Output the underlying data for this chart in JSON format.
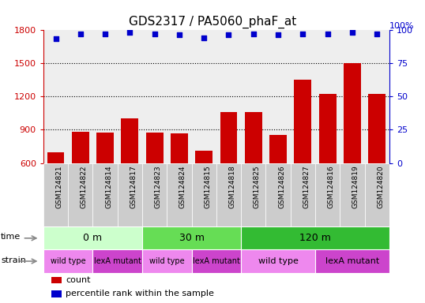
{
  "title": "GDS2317 / PA5060_phaF_at",
  "samples": [
    "GSM124821",
    "GSM124822",
    "GSM124814",
    "GSM124817",
    "GSM124823",
    "GSM124824",
    "GSM124815",
    "GSM124818",
    "GSM124825",
    "GSM124826",
    "GSM124827",
    "GSM124816",
    "GSM124819",
    "GSM124820"
  ],
  "counts": [
    700,
    880,
    875,
    1000,
    875,
    870,
    710,
    1060,
    1060,
    850,
    1350,
    1225,
    1500,
    1225
  ],
  "percentiles": [
    93,
    97,
    97,
    98,
    97,
    96,
    94,
    96,
    97,
    96,
    97,
    97,
    98,
    97
  ],
  "bar_color": "#cc0000",
  "dot_color": "#0000cc",
  "ylim_left": [
    600,
    1800
  ],
  "ylim_right": [
    0,
    100
  ],
  "yticks_left": [
    600,
    900,
    1200,
    1500,
    1800
  ],
  "yticks_right": [
    0,
    25,
    50,
    75,
    100
  ],
  "grid_ticks": [
    900,
    1200,
    1500
  ],
  "time_groups": [
    {
      "label": "0 m",
      "start": 0,
      "end": 4,
      "color": "#ccffcc"
    },
    {
      "label": "30 m",
      "start": 4,
      "end": 8,
      "color": "#66dd55"
    },
    {
      "label": "120 m",
      "start": 8,
      "end": 14,
      "color": "#33bb33"
    }
  ],
  "strain_groups": [
    {
      "label": "wild type",
      "start": 0,
      "end": 2,
      "color": "#ee88ee"
    },
    {
      "label": "lexA mutant",
      "start": 2,
      "end": 4,
      "color": "#cc44cc"
    },
    {
      "label": "wild type",
      "start": 4,
      "end": 6,
      "color": "#ee88ee"
    },
    {
      "label": "lexA mutant",
      "start": 6,
      "end": 8,
      "color": "#cc44cc"
    },
    {
      "label": "wild type",
      "start": 8,
      "end": 11,
      "color": "#ee88ee"
    },
    {
      "label": "lexA mutant",
      "start": 11,
      "end": 14,
      "color": "#cc44cc"
    }
  ],
  "xlabel_color": "#555555",
  "tick_color_left": "#cc0000",
  "tick_color_right": "#0000cc",
  "plot_bg": "#eeeeee",
  "bar_width": 0.7,
  "legend_items": [
    {
      "label": "count",
      "color": "#cc0000"
    },
    {
      "label": "percentile rank within the sample",
      "color": "#0000cc"
    }
  ]
}
